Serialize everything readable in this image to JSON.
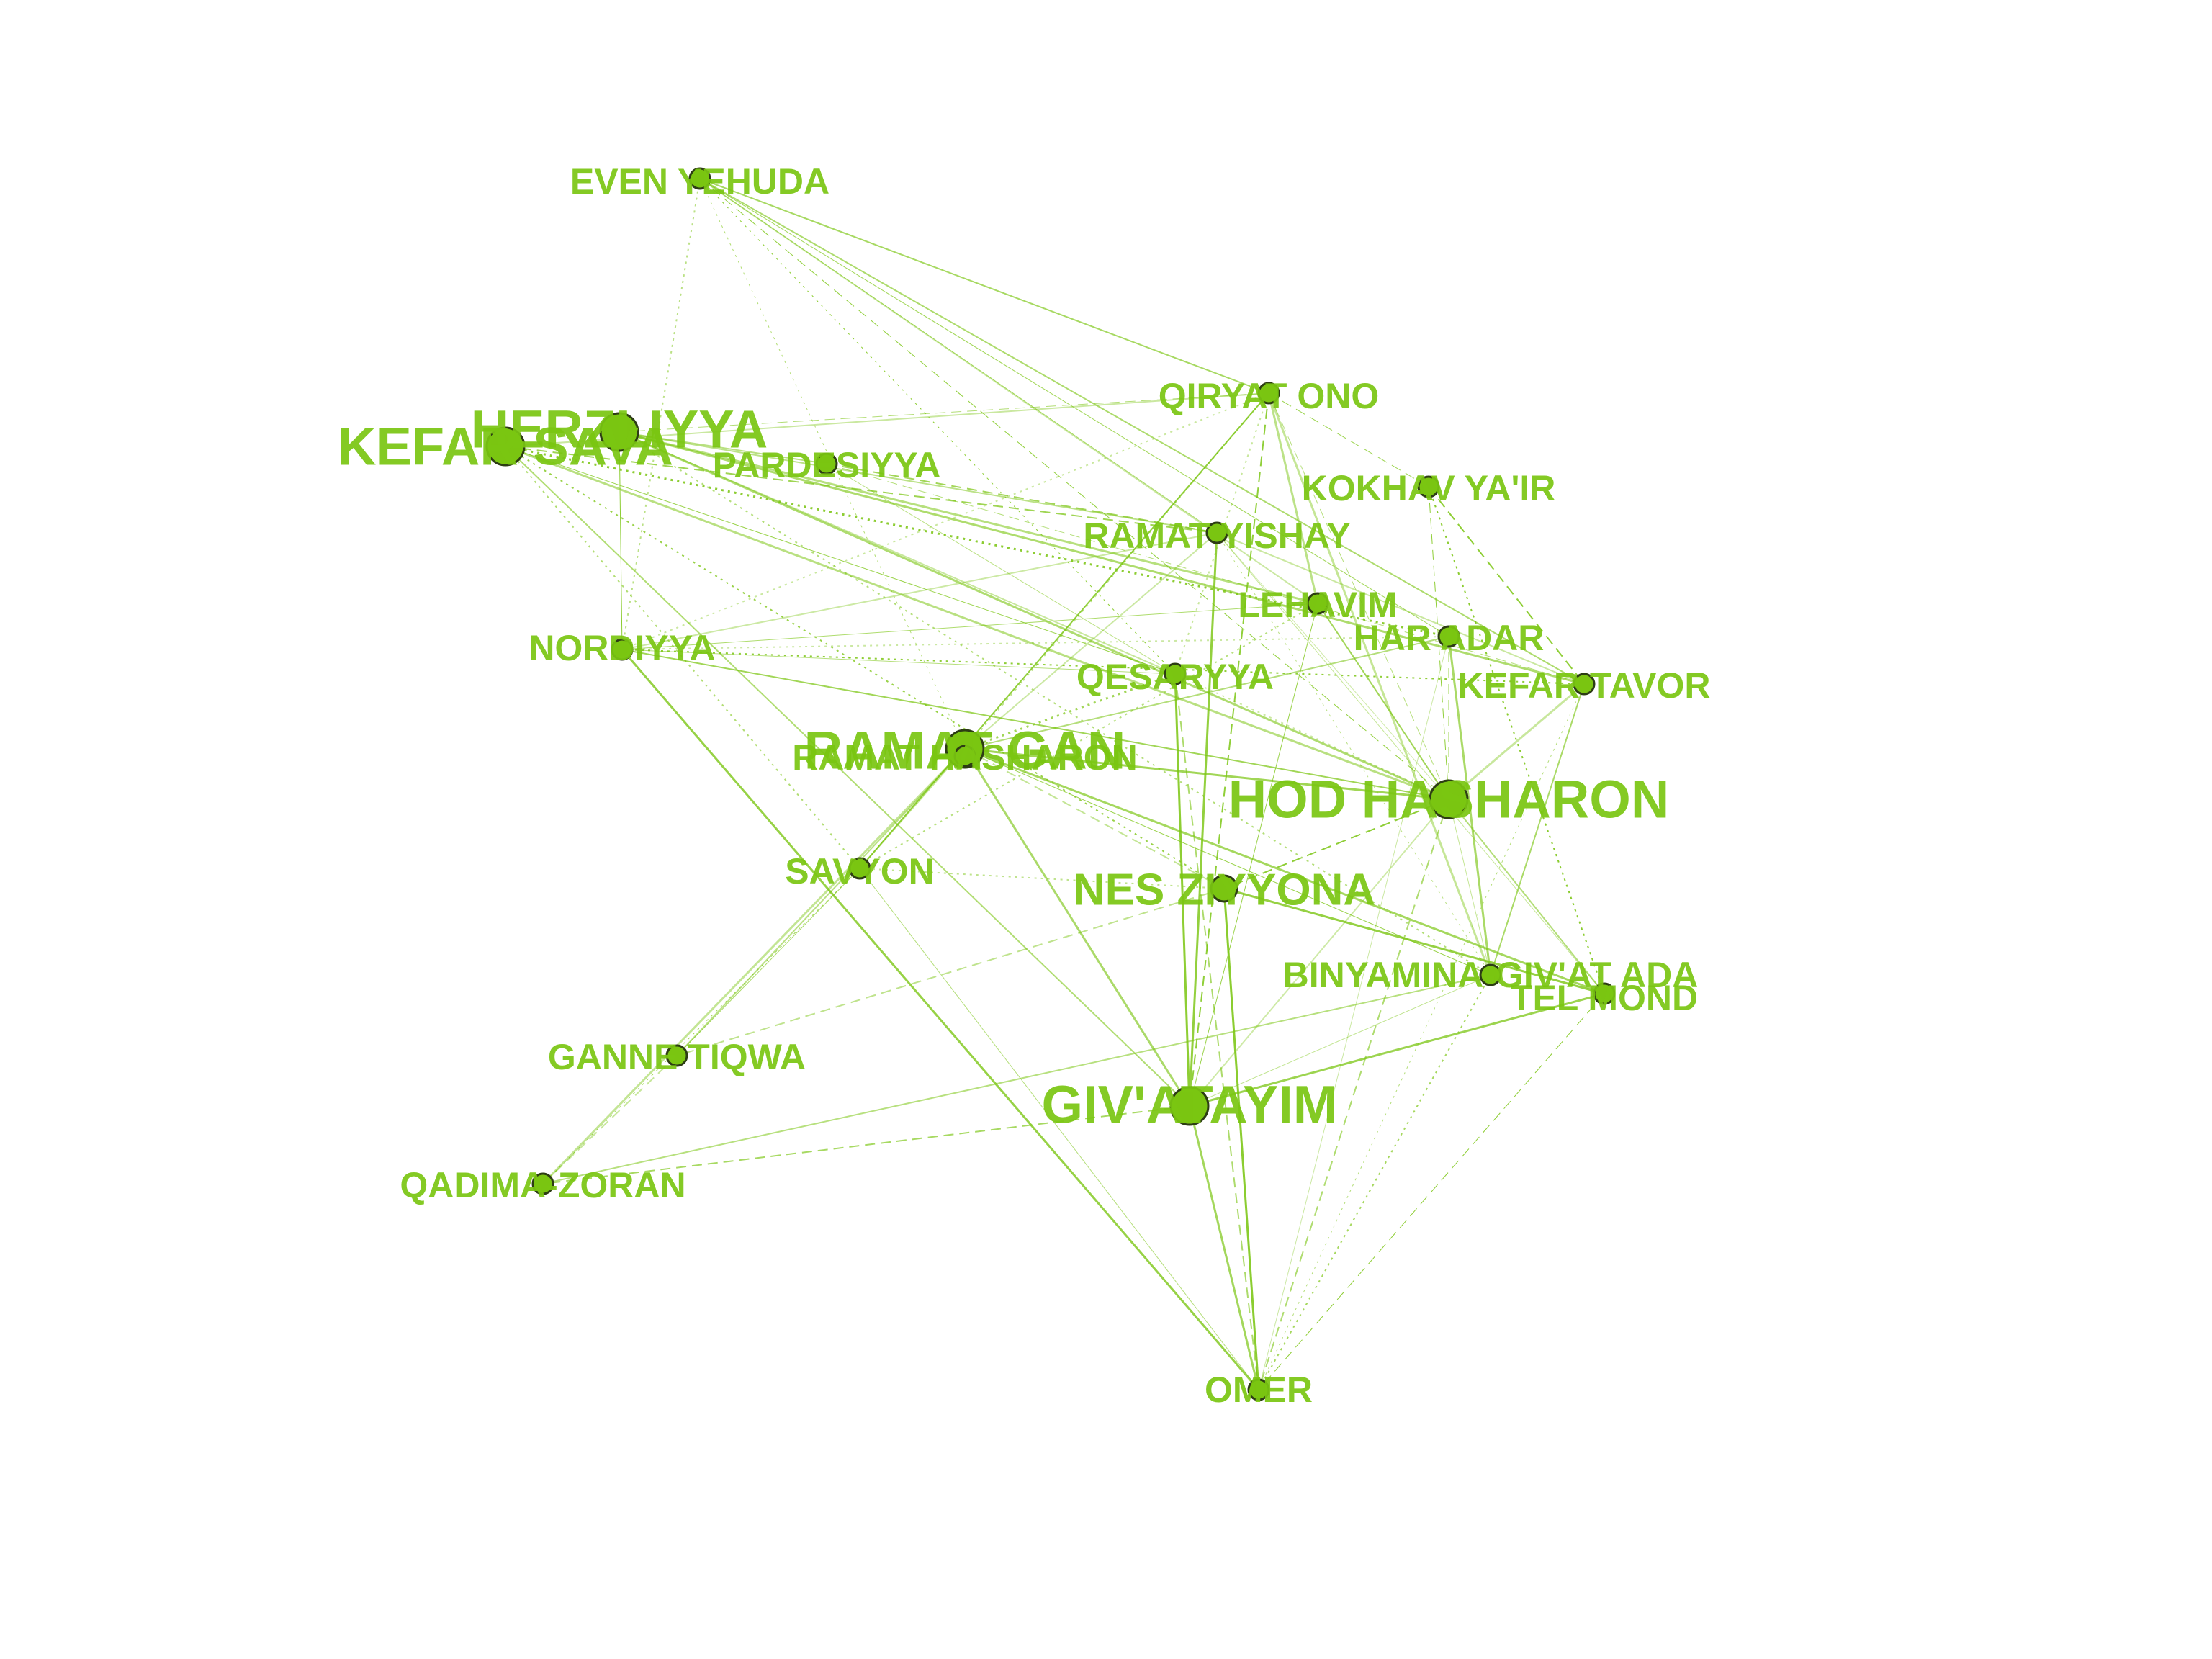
{
  "colors": {
    "label": "#7ac511",
    "node_fill": "#7ac511",
    "node_stroke": "#2d3d14",
    "edge": "#7ac511",
    "background": "#ffffff"
  },
  "nodes": [
    {
      "id": "even-yehuda",
      "label": "EVEN YEHUDA",
      "size": "small"
    },
    {
      "id": "qiryat-ono",
      "label": "QIRYAT ONO",
      "size": "small"
    },
    {
      "id": "herzliyya",
      "label": "HERZLIYYA",
      "size": "large"
    },
    {
      "id": "kefar-sava",
      "label": "KEFAR SAVA",
      "size": "large"
    },
    {
      "id": "pardesiyya",
      "label": "PARDESIYYA",
      "size": "small"
    },
    {
      "id": "kokhav-yair",
      "label": "KOKHAV YA'IR",
      "size": "small"
    },
    {
      "id": "ramat-yishay",
      "label": "RAMAT YISHAY",
      "size": "small"
    },
    {
      "id": "lehavim",
      "label": "LEHAVIM",
      "size": "small"
    },
    {
      "id": "har-adar",
      "label": "HAR ADAR",
      "size": "small"
    },
    {
      "id": "nordiyya",
      "label": "NORDIYYA",
      "size": "small"
    },
    {
      "id": "qesaryya",
      "label": "QESARYYA",
      "size": "small"
    },
    {
      "id": "kefar-tavor",
      "label": "KEFAR TAVOR",
      "size": "small"
    },
    {
      "id": "ramat-gan",
      "label": "RAMAT GAN",
      "size": "large"
    },
    {
      "id": "ramat-hasharon",
      "label": "RAMAT HASHARON",
      "size": "small"
    },
    {
      "id": "hod-hasharon",
      "label": "HOD HASHARON",
      "size": "large"
    },
    {
      "id": "savyon",
      "label": "SAVYON",
      "size": "small"
    },
    {
      "id": "nes-ziyyona",
      "label": "NES ZIYYONA",
      "size": "medium"
    },
    {
      "id": "binyamina",
      "label": "BINYAMINA-GIV'AT ADA",
      "size": "small"
    },
    {
      "id": "tel-mond",
      "label": "TEL MOND",
      "size": "small"
    },
    {
      "id": "ganne-tiqwa",
      "label": "GANNE TIQWA",
      "size": "small"
    },
    {
      "id": "givatayim",
      "label": "GIV'ATAYIM",
      "size": "large"
    },
    {
      "id": "qadima-zoran",
      "label": "QADIMA-ZORAN",
      "size": "small"
    },
    {
      "id": "omer",
      "label": "OMER",
      "size": "small"
    }
  ],
  "edges": [
    [
      "even-yehuda",
      "qiryat-ono"
    ],
    [
      "even-yehuda",
      "ramat-yishay"
    ],
    [
      "even-yehuda",
      "hod-hasharon"
    ],
    [
      "even-yehuda",
      "nordiyya"
    ],
    [
      "even-yehuda",
      "lehavim"
    ],
    [
      "even-yehuda",
      "har-adar"
    ],
    [
      "even-yehuda",
      "kefar-tavor"
    ],
    [
      "even-yehuda",
      "qesaryya"
    ],
    [
      "even-yehuda",
      "ramat-gan"
    ],
    [
      "herzliyya",
      "qiryat-ono"
    ],
    [
      "herzliyya",
      "ramat-yishay"
    ],
    [
      "herzliyya",
      "hod-hasharon"
    ],
    [
      "herzliyya",
      "pardesiyya"
    ],
    [
      "herzliyya",
      "lehavim"
    ],
    [
      "herzliyya",
      "nordiyya"
    ],
    [
      "herzliyya",
      "kefar-tavor"
    ],
    [
      "herzliyya",
      "binyamina"
    ],
    [
      "herzliyya",
      "qesaryya"
    ],
    [
      "kefar-sava",
      "qiryat-ono"
    ],
    [
      "kefar-sava",
      "ramat-yishay"
    ],
    [
      "kefar-sava",
      "hod-hasharon"
    ],
    [
      "kefar-sava",
      "savyon"
    ],
    [
      "kefar-sava",
      "givatayim"
    ],
    [
      "kefar-sava",
      "qesaryya"
    ],
    [
      "kefar-sava",
      "nes-ziyyona"
    ],
    [
      "kefar-sava",
      "har-adar"
    ],
    [
      "pardesiyya",
      "ramat-yishay"
    ],
    [
      "pardesiyya",
      "qesaryya"
    ],
    [
      "pardesiyya",
      "kefar-tavor"
    ],
    [
      "qiryat-ono",
      "ramat-gan"
    ],
    [
      "qiryat-ono",
      "hod-hasharon"
    ],
    [
      "qiryat-ono",
      "nordiyya"
    ],
    [
      "qiryat-ono",
      "givatayim"
    ],
    [
      "qiryat-ono",
      "qesaryya"
    ],
    [
      "qiryat-ono",
      "lehavim"
    ],
    [
      "qiryat-ono",
      "kokhav-yair"
    ],
    [
      "qiryat-ono",
      "savyon"
    ],
    [
      "qiryat-ono",
      "binyamina"
    ],
    [
      "ramat-yishay",
      "hod-hasharon"
    ],
    [
      "ramat-yishay",
      "givatayim"
    ],
    [
      "ramat-yishay",
      "nordiyya"
    ],
    [
      "ramat-yishay",
      "ramat-gan"
    ],
    [
      "ramat-yishay",
      "binyamina"
    ],
    [
      "ramat-yishay",
      "tel-mond"
    ],
    [
      "ramat-yishay",
      "kefar-tavor"
    ],
    [
      "lehavim",
      "nordiyya"
    ],
    [
      "lehavim",
      "givatayim"
    ],
    [
      "lehavim",
      "savyon"
    ],
    [
      "lehavim",
      "hod-hasharon"
    ],
    [
      "har-adar",
      "nordiyya"
    ],
    [
      "har-adar",
      "omer"
    ],
    [
      "har-adar",
      "hod-hasharon"
    ],
    [
      "har-adar",
      "ramat-gan"
    ],
    [
      "har-adar",
      "binyamina"
    ],
    [
      "kokhav-yair",
      "hod-hasharon"
    ],
    [
      "kokhav-yair",
      "kefar-tavor"
    ],
    [
      "kokhav-yair",
      "tel-mond"
    ],
    [
      "qesaryya",
      "omer"
    ],
    [
      "qesaryya",
      "givatayim"
    ],
    [
      "qesaryya",
      "ramat-gan"
    ],
    [
      "qesaryya",
      "hod-hasharon"
    ],
    [
      "nordiyya",
      "hod-hasharon"
    ],
    [
      "nordiyya",
      "omer"
    ],
    [
      "nordiyya",
      "kefar-tavor"
    ],
    [
      "nordiyya",
      "qesaryya"
    ],
    [
      "ramat-gan",
      "hod-hasharon"
    ],
    [
      "ramat-gan",
      "savyon"
    ],
    [
      "ramat-gan",
      "ganne-tiqwa"
    ],
    [
      "ramat-gan",
      "givatayim"
    ],
    [
      "ramat-gan",
      "nes-ziyyona"
    ],
    [
      "ramat-gan",
      "binyamina"
    ],
    [
      "ramat-gan",
      "tel-mond"
    ],
    [
      "ramat-gan",
      "qadima-zoran"
    ],
    [
      "hod-hasharon",
      "nes-ziyyona"
    ],
    [
      "hod-hasharon",
      "binyamina"
    ],
    [
      "hod-hasharon",
      "tel-mond"
    ],
    [
      "hod-hasharon",
      "givatayim"
    ],
    [
      "hod-hasharon",
      "omer"
    ],
    [
      "hod-hasharon",
      "kefar-tavor"
    ],
    [
      "savyon",
      "omer"
    ],
    [
      "savyon",
      "qadima-zoran"
    ],
    [
      "savyon",
      "ganne-tiqwa"
    ],
    [
      "savyon",
      "nes-ziyyona"
    ],
    [
      "nes-ziyyona",
      "ganne-tiqwa"
    ],
    [
      "nes-ziyyona",
      "omer"
    ],
    [
      "nes-ziyyona",
      "tel-mond"
    ],
    [
      "binyamina",
      "givatayim"
    ],
    [
      "binyamina",
      "omer"
    ],
    [
      "binyamina",
      "qadima-zoran"
    ],
    [
      "tel-mond",
      "omer"
    ],
    [
      "tel-mond",
      "givatayim"
    ],
    [
      "ganne-tiqwa",
      "qadima-zoran"
    ],
    [
      "givatayim",
      "omer"
    ],
    [
      "givatayim",
      "qadima-zoran"
    ],
    [
      "kefar-tavor",
      "omer"
    ],
    [
      "kefar-tavor",
      "binyamina"
    ]
  ]
}
